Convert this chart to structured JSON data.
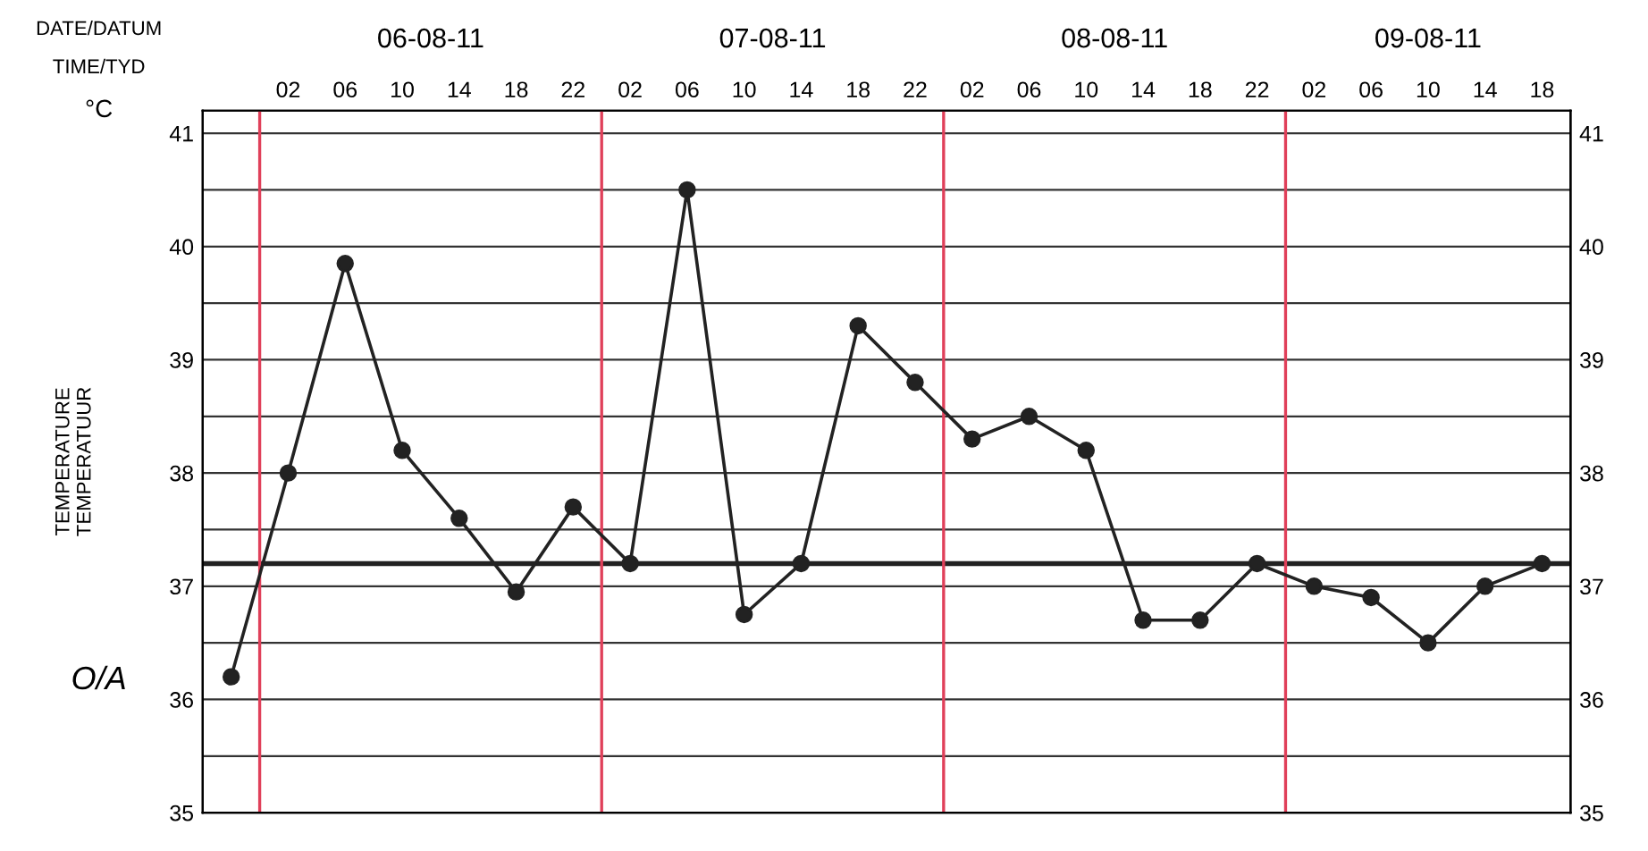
{
  "chart_data": {
    "type": "line",
    "ylabel": "TEMPERATURE\nTEMPERATUUR",
    "categories": [
      null,
      "02",
      "06",
      "10",
      "14",
      "18",
      "22",
      "02",
      "06",
      "10",
      "14",
      "18",
      "22",
      "02",
      "06",
      "10",
      "14",
      "18",
      "22",
      "02",
      "06",
      "10",
      "14",
      "18"
    ],
    "series": [
      {
        "color": "#222222",
        "values": [
          36.2,
          38.0,
          39.85,
          38.2,
          37.6,
          36.95,
          37.7,
          37.2,
          40.5,
          36.75,
          37.2,
          39.3,
          38.8,
          38.3,
          38.5,
          38.2,
          36.7,
          36.7,
          37.2,
          37.0,
          36.9,
          36.5,
          37.0,
          37.2
        ]
      }
    ],
    "ylim": [
      35,
      41.2
    ],
    "yticks": [
      35,
      {
        "value": 35.5,
        "label": null
      },
      36,
      {
        "value": 36.5,
        "label": null
      },
      37,
      {
        "value": 37.5,
        "label": null
      },
      38,
      {
        "value": 38.5,
        "label": null
      },
      39,
      {
        "value": 39.5,
        "label": null
      },
      40,
      {
        "value": 40.5,
        "label": null
      },
      41
    ],
    "y2lim": [
      35,
      41.2
    ],
    "y2ticks": [
      35,
      36,
      37,
      38,
      39,
      40,
      41
    ],
    "grid": true,
    "marker": "circle",
    "line_style": "solid",
    "ref_lines": [
      {
        "axis": "y",
        "value": 37.2,
        "label": null,
        "color": "#222222"
      }
    ],
    "annotations": [
      "DATE/DATUM",
      "TIME/TYD",
      "°C",
      "O/A",
      "06-08-11",
      "07-08-11",
      "08-08-11",
      "09-08-11"
    ]
  }
}
